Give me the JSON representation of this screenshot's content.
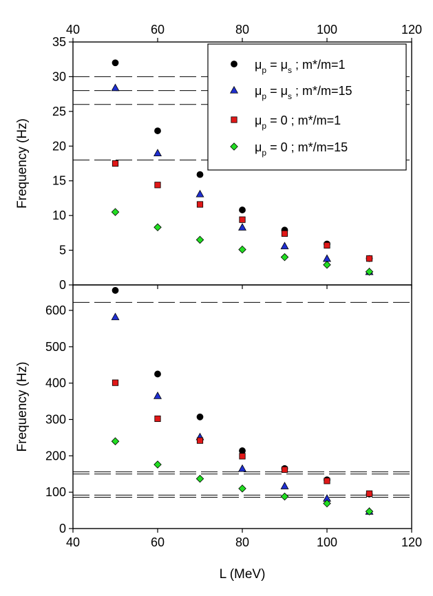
{
  "chart_data": [
    {
      "type": "scatter",
      "panel": "top",
      "xlabel": "",
      "ylabel": "Frequency (Hz)",
      "xlim": [
        40,
        120
      ],
      "ylim": [
        0,
        35
      ],
      "xticks": [
        40,
        60,
        80,
        100,
        120
      ],
      "yticks": [
        0,
        5,
        10,
        15,
        20,
        25,
        30,
        35
      ],
      "x": [
        50,
        60,
        70,
        80,
        90,
        100,
        110
      ],
      "series": [
        {
          "name": "μp = μs ; m*/m=1",
          "marker": "circle",
          "color": "#000000",
          "values": [
            32.0,
            22.2,
            15.9,
            10.8,
            7.9,
            5.9,
            3.8
          ]
        },
        {
          "name": "μp = μs ; m*/m=15",
          "marker": "triangle",
          "color": "#1f2fd0",
          "values": [
            28.4,
            19.0,
            13.1,
            8.3,
            5.6,
            3.8,
            1.9
          ]
        },
        {
          "name": "μp = 0 ; m*/m=1",
          "marker": "square",
          "color": "#e01818",
          "values": [
            17.5,
            14.4,
            11.6,
            9.4,
            7.4,
            5.7,
            3.8
          ]
        },
        {
          "name": "μp = 0 ; m*/m=15",
          "marker": "diamond",
          "color": "#22dd22",
          "values": [
            10.5,
            8.3,
            6.5,
            5.1,
            4.0,
            2.9,
            1.9
          ]
        }
      ],
      "reference_lines": [
        30.0,
        28.0,
        26.0,
        18.0
      ]
    },
    {
      "type": "scatter",
      "panel": "bottom",
      "xlabel": "L (MeV)",
      "ylabel": "Frequency (Hz)",
      "xlim": [
        40,
        120
      ],
      "ylim": [
        0,
        670
      ],
      "xticks": [
        40,
        60,
        80,
        100,
        120
      ],
      "yticks": [
        0,
        100,
        200,
        300,
        400,
        500,
        600
      ],
      "x": [
        50,
        60,
        70,
        80,
        90,
        100,
        110
      ],
      "series": [
        {
          "name": "μp = μs ; m*/m=1",
          "marker": "circle",
          "color": "#000000",
          "values": [
            655,
            425,
            307,
            214,
            165,
            134,
            95
          ]
        },
        {
          "name": "μp = μs ; m*/m=15",
          "marker": "triangle",
          "color": "#1f2fd0",
          "values": [
            582,
            365,
            252,
            165,
            117,
            83,
            47
          ]
        },
        {
          "name": "μp = 0 ; m*/m=1",
          "marker": "square",
          "color": "#e01818",
          "values": [
            401,
            302,
            242,
            199,
            162,
            131,
            96
          ]
        },
        {
          "name": "μp = 0 ; m*/m=15",
          "marker": "diamond",
          "color": "#22dd22",
          "values": [
            240,
            176,
            137,
            110,
            88,
            69,
            47
          ]
        }
      ],
      "reference_lines": [
        622,
        156,
        150,
        92,
        86
      ]
    }
  ],
  "legend": {
    "placement": "top-right",
    "items": [
      {
        "mu_left": "μ",
        "sub_left": "p",
        "eq": " = ",
        "mu_right": "μ",
        "sub_right": "s",
        "tail": " ; m*/m=1"
      },
      {
        "mu_left": "μ",
        "sub_left": "p",
        "eq": " = ",
        "mu_right": "μ",
        "sub_right": "s",
        "tail": " ; m*/m=15"
      },
      {
        "mu_left": "μ",
        "sub_left": "p",
        "eq": " = 0 ; m*/m=1",
        "mu_right": "",
        "sub_right": "",
        "tail": ""
      },
      {
        "mu_left": "μ",
        "sub_left": "p",
        "eq": " = 0 ; m*/m=15",
        "mu_right": "",
        "sub_right": "",
        "tail": ""
      }
    ]
  }
}
